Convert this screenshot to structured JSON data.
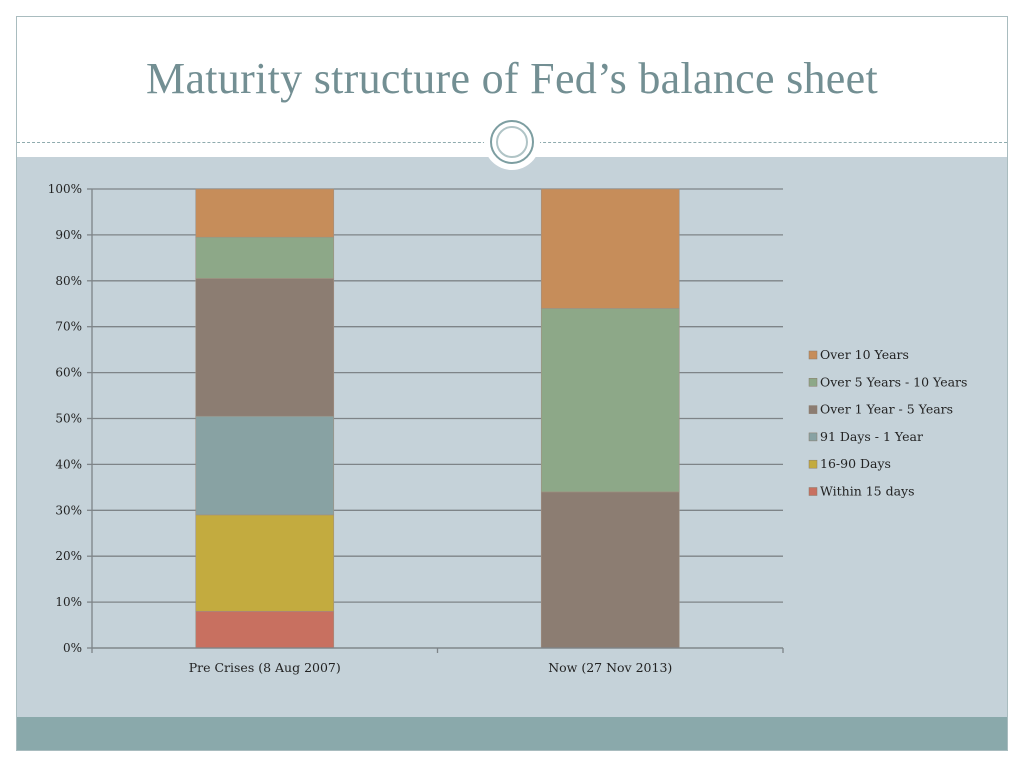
{
  "slide": {
    "title": "Maturity structure of Fed’s balance sheet"
  },
  "chart_data": {
    "type": "bar",
    "stacked": "percent",
    "categories": [
      "Pre Crises (8 Aug 2007)",
      "Now (27 Nov 2013)"
    ],
    "ylim": [
      0,
      100
    ],
    "yticks": [
      "0%",
      "10%",
      "20%",
      "30%",
      "40%",
      "50%",
      "60%",
      "70%",
      "80%",
      "90%",
      "100%"
    ],
    "grid": true,
    "legend_position": "right",
    "series": [
      {
        "name": "Within 15 days",
        "color": "#c87060",
        "values": [
          8,
          0
        ]
      },
      {
        "name": "16-90 Days",
        "color": "#c3ab3f",
        "values": [
          21,
          0
        ]
      },
      {
        "name": "91 Days - 1 Year",
        "color": "#88a2a3",
        "values": [
          21.5,
          0
        ]
      },
      {
        "name": "Over 1 Year  - 5 Years",
        "color": "#8c7d72",
        "values": [
          30,
          34
        ]
      },
      {
        "name": "Over 5 Years  - 10 Years",
        "color": "#8da888",
        "values": [
          9,
          40
        ]
      },
      {
        "name": "Over 10 Years",
        "color": "#c68d5a",
        "values": [
          10.5,
          26
        ]
      }
    ]
  }
}
